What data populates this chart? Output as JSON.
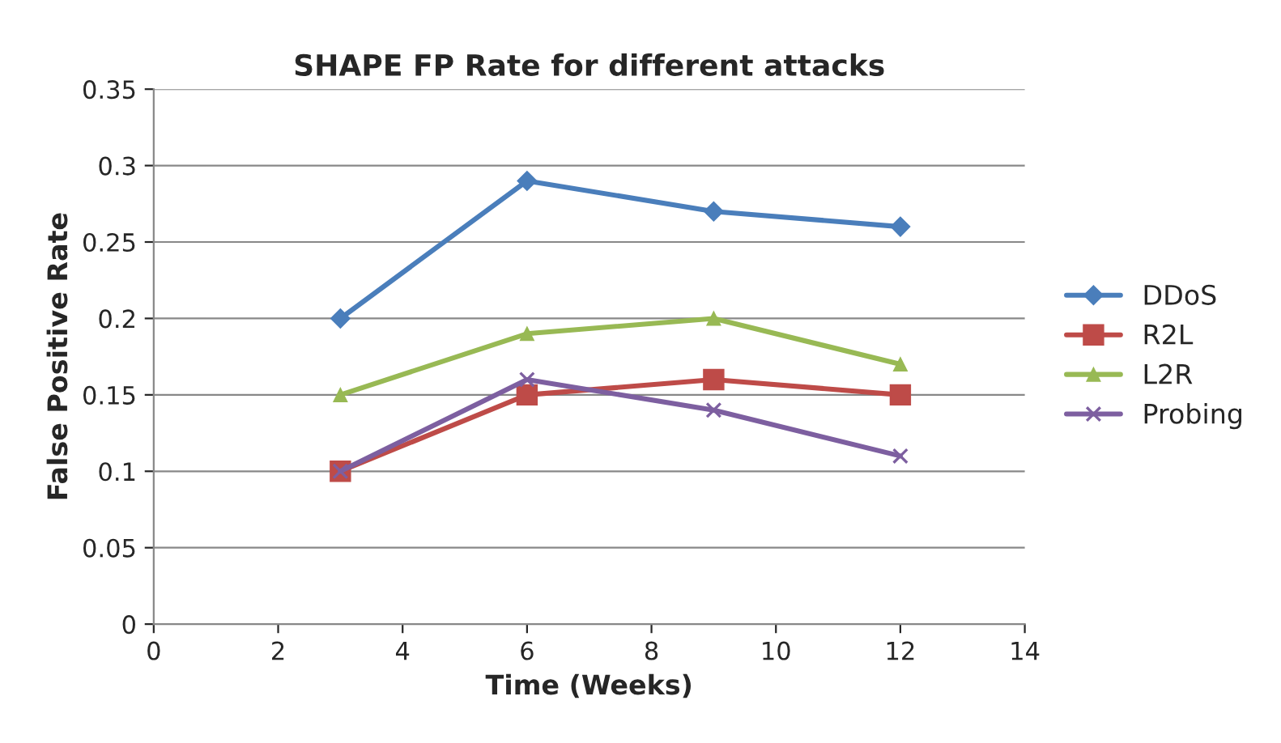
{
  "chart_data": {
    "type": "line",
    "title": "SHAPE FP Rate for different attacks",
    "xlabel": "Time (Weeks)",
    "ylabel": "False Positive Rate",
    "x": [
      3,
      6,
      9,
      12
    ],
    "series": [
      {
        "name": "DDoS",
        "color": "#4a7ebb",
        "marker": "diamond",
        "values": [
          0.2,
          0.29,
          0.27,
          0.26
        ]
      },
      {
        "name": "R2L",
        "color": "#be4b48",
        "marker": "square",
        "values": [
          0.1,
          0.15,
          0.16,
          0.15
        ]
      },
      {
        "name": "L2R",
        "color": "#98b954",
        "marker": "triangle",
        "values": [
          0.15,
          0.19,
          0.2,
          0.17
        ]
      },
      {
        "name": "Probing",
        "color": "#7d5fa0",
        "marker": "cross",
        "values": [
          0.1,
          0.16,
          0.14,
          0.11
        ]
      }
    ],
    "xlim": [
      0,
      14
    ],
    "xticks": [
      0,
      2,
      4,
      6,
      8,
      10,
      12,
      14
    ],
    "ylim": [
      0,
      0.35
    ],
    "yticks": [
      0,
      0.05,
      0.1,
      0.15,
      0.2,
      0.25,
      0.3,
      0.35
    ],
    "grid": "y",
    "legend": "right",
    "line_style": "solid"
  }
}
